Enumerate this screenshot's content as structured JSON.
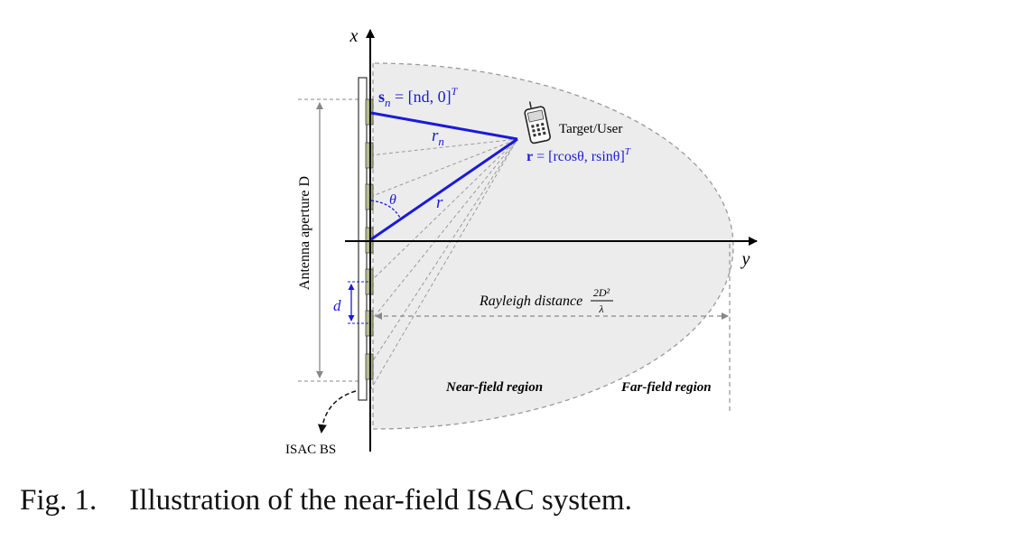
{
  "diagram": {
    "axis_x_label": "x",
    "axis_y_label": "y",
    "element_position_eq": {
      "bold": "s",
      "sub": "n",
      "rest": " = [nd, 0]",
      "sup": "T"
    },
    "rn_label": {
      "main": "r",
      "sub": "n"
    },
    "r_label": "r",
    "theta_label": "θ",
    "target_label": "Target/User",
    "target_position_eq": {
      "bold": "r",
      "rest": " = [rcosθ, rsinθ]",
      "sup": "T"
    },
    "aperture_label": "Antenna aperture D",
    "spacing_label": "d",
    "rayleigh_label": "Rayleigh distance",
    "rayleigh_fraction": {
      "numerator": "2D²",
      "denominator": "λ"
    },
    "near_field_label": "Near-field region",
    "far_field_label": "Far-field region",
    "bs_label": "ISAC BS",
    "colors": {
      "blue": "#1a1adb",
      "element_fill": "#b5bc8a",
      "region_fill": "#ececec",
      "dashed": "#9a9a9a"
    }
  },
  "caption": {
    "prefix": "Fig. 1.",
    "text": "Illustration of the near-field ISAC system."
  }
}
